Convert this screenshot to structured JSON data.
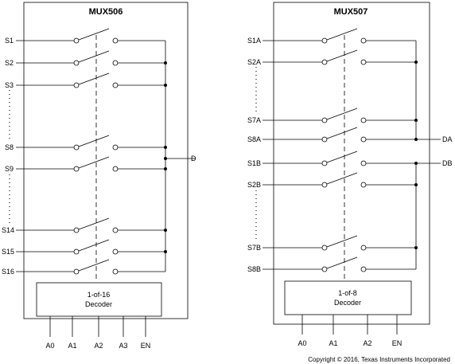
{
  "mux506": {
    "title": "MUX506",
    "inputs": [
      "S1",
      "S2",
      "S3",
      "S8",
      "S9",
      "S14",
      "S15",
      "S16"
    ],
    "output": "D",
    "decoder": {
      "line1": "1-of-16",
      "line2": "Decoder"
    },
    "control_pins": [
      "A0",
      "A1",
      "A2",
      "A3",
      "EN"
    ]
  },
  "mux507": {
    "title": "MUX507",
    "inputs": [
      "S1A",
      "S2A",
      "S7A",
      "S8A",
      "S1B",
      "S2B",
      "S7B",
      "S8B"
    ],
    "outputs": [
      "DA",
      "DB"
    ],
    "decoder": {
      "line1": "1-of-8",
      "line2": "Decoder"
    },
    "control_pins": [
      "A0",
      "A1",
      "A2",
      "EN"
    ]
  },
  "copyright": "Copyright © 2016, Texas Instruments Incorporated"
}
